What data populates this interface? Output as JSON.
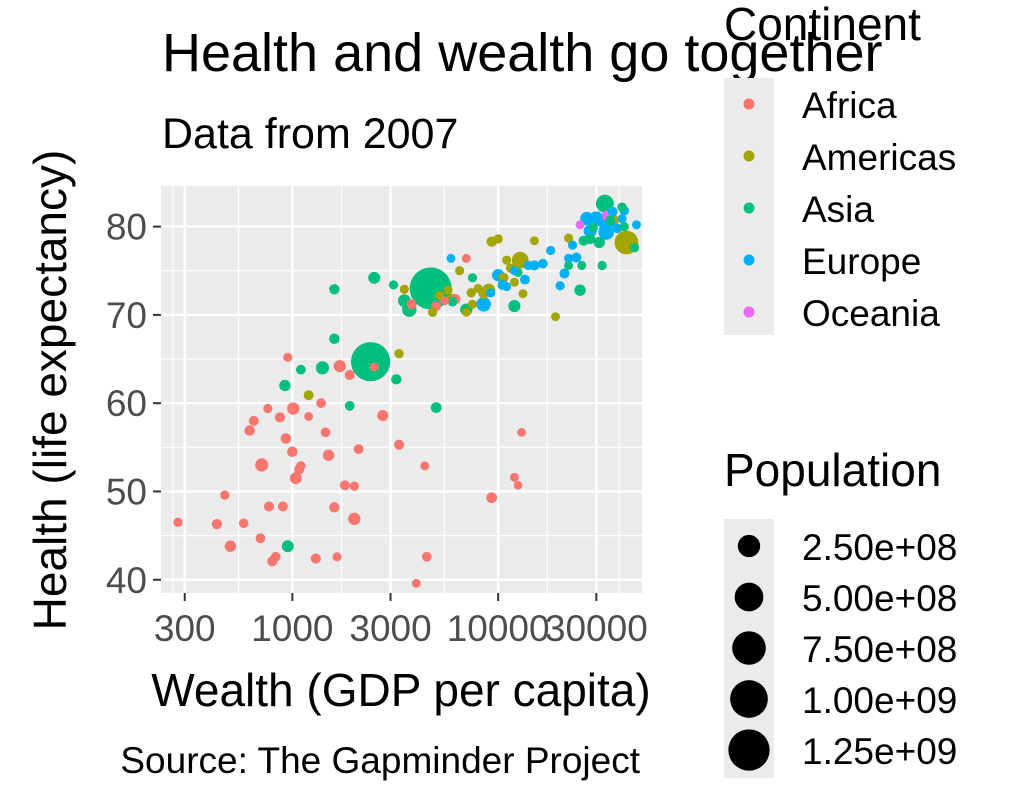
{
  "chart_data": {
    "type": "scatter",
    "title": "Health and wealth go together",
    "subtitle": "Data from 2007",
    "xlabel": "Wealth (GDP per capita)",
    "ylabel": "Health (life expectancy)",
    "caption": "Source: The Gapminder Project",
    "x_scale": "log10",
    "xlim": [
      230,
      50000
    ],
    "ylim": [
      38.5,
      84.6
    ],
    "x_ticks": [
      300,
      1000,
      3000,
      10000,
      30000
    ],
    "x_tick_labels": [
      "300",
      "1000",
      "3000",
      "10000",
      "30000"
    ],
    "y_ticks": [
      40,
      50,
      60,
      70,
      80
    ],
    "y_tick_labels": [
      "40",
      "50",
      "60",
      "70",
      "80"
    ],
    "grid": true,
    "legend": {
      "color_title": "Continent",
      "color_entries": [
        {
          "label": "Africa",
          "color": "#F8766D"
        },
        {
          "label": "Americas",
          "color": "#A3A500"
        },
        {
          "label": "Asia",
          "color": "#00BF7D"
        },
        {
          "label": "Europe",
          "color": "#00B0F6"
        },
        {
          "label": "Oceania",
          "color": "#E76BF3"
        }
      ],
      "size_title": "Population",
      "size_entries": [
        {
          "label": "2.50e+08",
          "value": 250000000
        },
        {
          "label": "5.00e+08",
          "value": 500000000
        },
        {
          "label": "7.50e+08",
          "value": 750000000
        },
        {
          "label": "1.00e+09",
          "value": 1000000000
        },
        {
          "label": "1.25e+09",
          "value": 1250000000
        }
      ],
      "placement": "right"
    },
    "series": [
      {
        "name": "Africa",
        "points": [
          [
            278,
            46.5,
            6
          ],
          [
            430,
            46.3,
            11
          ],
          [
            470,
            49.6,
            6
          ],
          [
            500,
            43.8,
            20
          ],
          [
            580,
            46.4,
            7
          ],
          [
            620,
            56.9,
            13
          ],
          [
            650,
            58.0,
            9
          ],
          [
            700,
            44.7,
            8
          ],
          [
            710,
            53.0,
            40
          ],
          [
            760,
            59.4,
            5
          ],
          [
            770,
            48.3,
            10
          ],
          [
            800,
            42.1,
            12
          ],
          [
            830,
            42.6,
            8
          ],
          [
            870,
            58.4,
            11
          ],
          [
            900,
            48.3,
            9
          ],
          [
            930,
            56.0,
            13
          ],
          [
            950,
            65.2,
            5
          ],
          [
            1000,
            54.5,
            13
          ],
          [
            1010,
            59.4,
            30
          ],
          [
            1040,
            51.5,
            25
          ],
          [
            1080,
            52.5,
            10
          ],
          [
            1100,
            52.9,
            6
          ],
          [
            1200,
            58.5,
            4
          ],
          [
            1300,
            42.4,
            11
          ],
          [
            1380,
            60.0,
            8
          ],
          [
            1450,
            56.7,
            7
          ],
          [
            1500,
            54.1,
            20
          ],
          [
            1600,
            48.2,
            12
          ],
          [
            1650,
            42.6,
            5
          ],
          [
            1700,
            64.2,
            28
          ],
          [
            1800,
            50.7,
            9
          ],
          [
            1900,
            63.2,
            10
          ],
          [
            2000,
            50.6,
            6
          ],
          [
            2000,
            46.9,
            30
          ],
          [
            2100,
            54.8,
            9
          ],
          [
            2500,
            64.1,
            4
          ],
          [
            2750,
            58.6,
            18
          ],
          [
            3300,
            55.3,
            10
          ],
          [
            3800,
            71.2,
            10
          ],
          [
            4000,
            39.6,
            4
          ],
          [
            4400,
            52.9,
            4
          ],
          [
            4500,
            42.6,
            8
          ],
          [
            5000,
            71.0,
            8
          ],
          [
            5500,
            71.6,
            4
          ],
          [
            6200,
            71.8,
            10
          ],
          [
            7000,
            76.4,
            4
          ],
          [
            9300,
            49.3,
            15
          ],
          [
            12000,
            51.6,
            4
          ],
          [
            12500,
            50.7,
            3
          ],
          [
            13000,
            56.7,
            3
          ]
        ]
      },
      {
        "name": "Americas",
        "points": [
          [
            1200,
            60.9,
            9
          ],
          [
            3300,
            65.6,
            6
          ],
          [
            3500,
            72.9,
            5
          ],
          [
            4800,
            70.3,
            6
          ],
          [
            5200,
            72.2,
            5
          ],
          [
            5700,
            72.8,
            5
          ],
          [
            6000,
            71.8,
            13
          ],
          [
            6500,
            75.0,
            5
          ],
          [
            7000,
            70.3,
            4
          ],
          [
            7400,
            72.5,
            6
          ],
          [
            7500,
            71.2,
            5
          ],
          [
            8000,
            73.0,
            4
          ],
          [
            8500,
            72.4,
            12
          ],
          [
            9000,
            72.8,
            40
          ],
          [
            9300,
            78.3,
            12
          ],
          [
            10000,
            78.6,
            6
          ],
          [
            10600,
            74.2,
            10
          ],
          [
            11000,
            76.2,
            5
          ],
          [
            11500,
            75.3,
            6
          ],
          [
            12000,
            73.7,
            4
          ],
          [
            12800,
            76.2,
            100
          ],
          [
            13200,
            72.4,
            4
          ],
          [
            15000,
            78.4,
            4
          ],
          [
            19000,
            69.8,
            4
          ],
          [
            22000,
            78.7,
            5
          ],
          [
            36000,
            80.7,
            33
          ],
          [
            42000,
            78.2,
            300
          ]
        ]
      },
      {
        "name": "Asia",
        "points": [
          [
            920,
            62.0,
            20
          ],
          [
            950,
            43.8,
            25
          ],
          [
            1100,
            63.8,
            8
          ],
          [
            1400,
            64.0,
            40
          ],
          [
            1600,
            72.9,
            12
          ],
          [
            1600,
            67.3,
            13
          ],
          [
            1900,
            59.7,
            8
          ],
          [
            2400,
            64.7,
            1100
          ],
          [
            2500,
            74.2,
            26
          ],
          [
            3100,
            73.4,
            5
          ],
          [
            3200,
            62.7,
            12
          ],
          [
            3500,
            71.6,
            35
          ],
          [
            3700,
            70.6,
            60
          ],
          [
            4200,
            71.6,
            5
          ],
          [
            4700,
            73.0,
            1300
          ],
          [
            4900,
            74.2,
            4
          ],
          [
            5000,
            59.5,
            15
          ],
          [
            6000,
            71.5,
            8
          ],
          [
            7000,
            70.6,
            30
          ],
          [
            7500,
            74.2,
            5
          ],
          [
            12000,
            71.0,
            27
          ],
          [
            12500,
            74.8,
            4
          ],
          [
            22000,
            75.6,
            4
          ],
          [
            25000,
            72.8,
            20
          ],
          [
            25500,
            75.6,
            4
          ],
          [
            26000,
            78.4,
            10
          ],
          [
            28000,
            78.6,
            12
          ],
          [
            29000,
            79.9,
            5
          ],
          [
            31000,
            78.2,
            20
          ],
          [
            32000,
            75.6,
            5
          ],
          [
            33000,
            82.6,
            127
          ],
          [
            35000,
            80.7,
            7
          ],
          [
            40000,
            82.2,
            6
          ],
          [
            41000,
            80.0,
            5
          ],
          [
            46000,
            77.6,
            5
          ]
        ]
      },
      {
        "name": "Europe",
        "points": [
          [
            5900,
            76.4,
            4
          ],
          [
            8500,
            71.2,
            60
          ],
          [
            9200,
            72.5,
            5
          ],
          [
            10000,
            74.5,
            30
          ],
          [
            10500,
            73.4,
            10
          ],
          [
            11000,
            73.2,
            4
          ],
          [
            12000,
            75.0,
            4
          ],
          [
            13500,
            74.0,
            9
          ],
          [
            14000,
            75.6,
            6
          ],
          [
            15000,
            75.6,
            10
          ],
          [
            16500,
            75.8,
            7
          ],
          [
            18000,
            77.3,
            5
          ],
          [
            20000,
            73.3,
            5
          ],
          [
            21000,
            74.7,
            10
          ],
          [
            22000,
            76.4,
            5
          ],
          [
            23000,
            77.9,
            5
          ],
          [
            24000,
            76.5,
            10
          ],
          [
            27000,
            80.9,
            45
          ],
          [
            28000,
            79.5,
            40
          ],
          [
            30000,
            80.9,
            60
          ],
          [
            33000,
            80.6,
            80
          ],
          [
            33500,
            79.4,
            80
          ],
          [
            35000,
            80.5,
            10
          ],
          [
            36000,
            81.7,
            8
          ],
          [
            38000,
            79.8,
            6
          ],
          [
            40000,
            80.9,
            4
          ],
          [
            41000,
            81.8,
            7
          ],
          [
            47000,
            80.2,
            4
          ]
        ]
      },
      {
        "name": "Oceania",
        "points": [
          [
            25000,
            80.2,
            4
          ],
          [
            34000,
            81.2,
            20
          ]
        ]
      }
    ]
  }
}
